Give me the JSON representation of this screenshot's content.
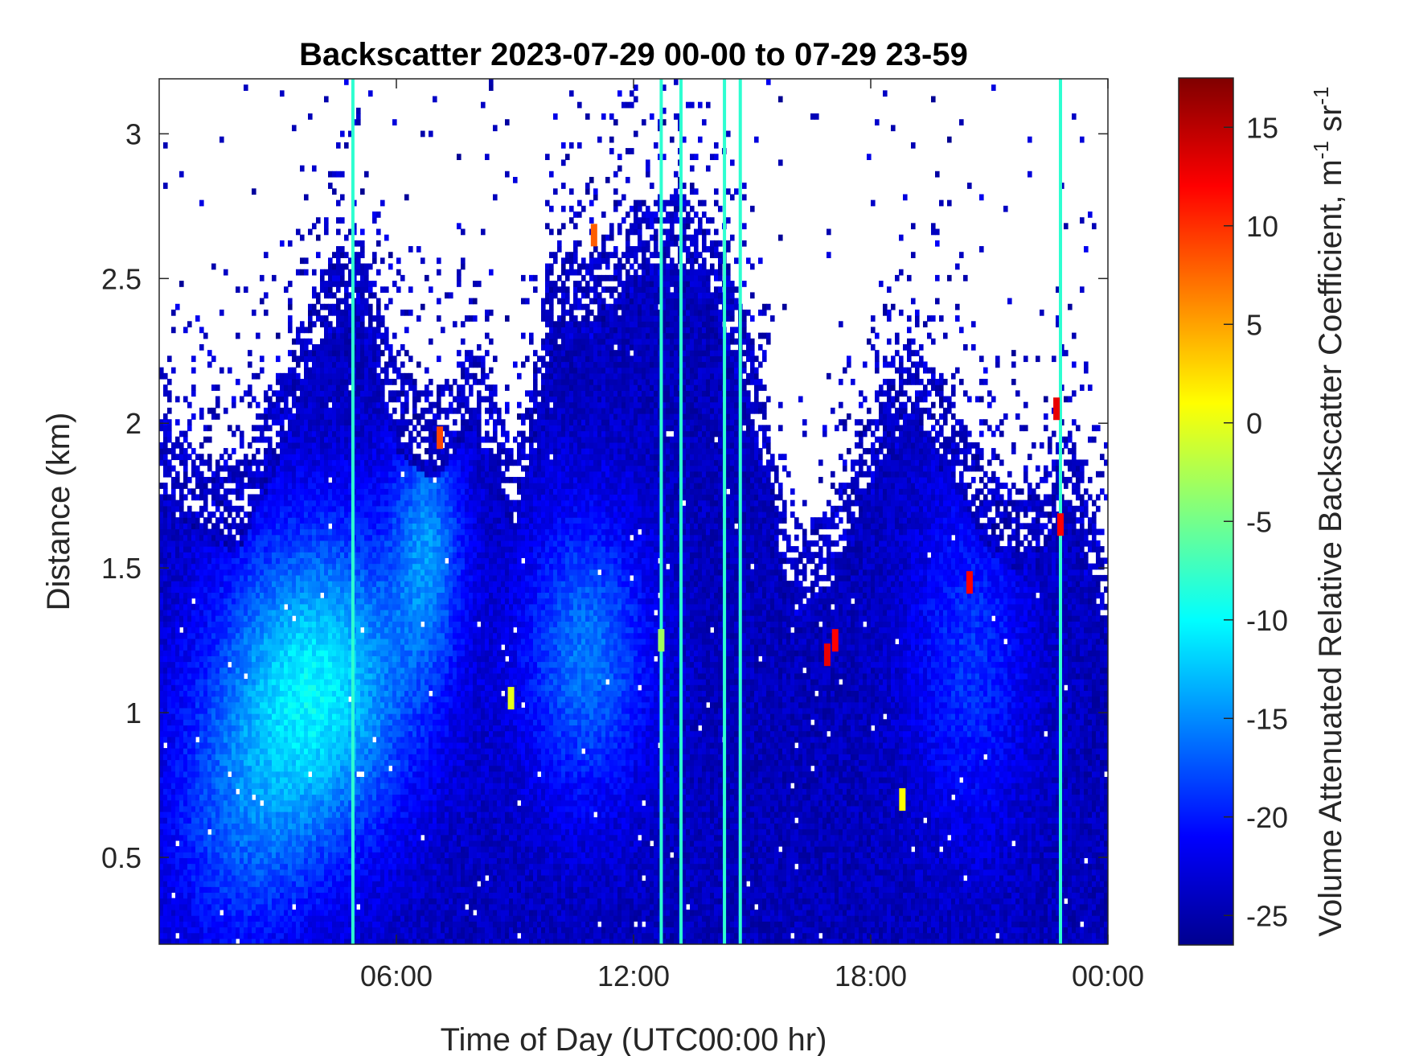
{
  "chart_data": {
    "type": "heatmap",
    "title": "Backscatter 2023-07-29 00-00 to 07-29 23-59",
    "xlabel": "Time of Day (UTC00:00 hr)",
    "ylabel": "Distance (km)",
    "x_range_hours": [
      0,
      24
    ],
    "y_range_km": [
      0.2,
      3.19
    ],
    "x_ticks": [
      {
        "hours": 6,
        "label": "06:00"
      },
      {
        "hours": 12,
        "label": "12:00"
      },
      {
        "hours": 18,
        "label": "18:00"
      },
      {
        "hours": 24,
        "label": "00:00"
      }
    ],
    "y_ticks": [
      {
        "value": 0.5,
        "label": "0.5"
      },
      {
        "value": 1,
        "label": "1"
      },
      {
        "value": 1.5,
        "label": "1.5"
      },
      {
        "value": 2,
        "label": "2"
      },
      {
        "value": 2.5,
        "label": "2.5"
      },
      {
        "value": 3,
        "label": "3"
      }
    ],
    "colorbar": {
      "label_main": "Volume Attenuated Relative Backscatter Coefficient, m",
      "label_sup1": "-1",
      "label_mid": " sr",
      "label_sup2": "-1",
      "range": [
        -26.5,
        17.5
      ],
      "colormap": "jet",
      "ticks": [
        {
          "value": -25,
          "label": "-25"
        },
        {
          "value": -20,
          "label": "-20"
        },
        {
          "value": -15,
          "label": "-15"
        },
        {
          "value": -10,
          "label": "-10"
        },
        {
          "value": -5,
          "label": "-5"
        },
        {
          "value": 0,
          "label": "0"
        },
        {
          "value": 5,
          "label": "5"
        },
        {
          "value": 10,
          "label": "10"
        },
        {
          "value": 15,
          "label": "15"
        }
      ]
    },
    "signal_top_km_by_hour": [
      {
        "hour": 0,
        "top": 2.05
      },
      {
        "hour": 1,
        "top": 1.9
      },
      {
        "hour": 2,
        "top": 1.85
      },
      {
        "hour": 3,
        "top": 2.15
      },
      {
        "hour": 4,
        "top": 2.5
      },
      {
        "hour": 5,
        "top": 2.7
      },
      {
        "hour": 6,
        "top": 2.2
      },
      {
        "hour": 7,
        "top": 2.1
      },
      {
        "hour": 8,
        "top": 2.3
      },
      {
        "hour": 9,
        "top": 1.9
      },
      {
        "hour": 10,
        "top": 2.6
      },
      {
        "hour": 11,
        "top": 2.6
      },
      {
        "hour": 12,
        "top": 2.75
      },
      {
        "hour": 13,
        "top": 2.8
      },
      {
        "hour": 14,
        "top": 2.7
      },
      {
        "hour": 15,
        "top": 2.3
      },
      {
        "hour": 16,
        "top": 1.6
      },
      {
        "hour": 17,
        "top": 1.7
      },
      {
        "hour": 18,
        "top": 2.05
      },
      {
        "hour": 19,
        "top": 2.3
      },
      {
        "hour": 20,
        "top": 2.1
      },
      {
        "hour": 21,
        "top": 1.85
      },
      {
        "hour": 22,
        "top": 1.75
      },
      {
        "hour": 23,
        "top": 2.0
      },
      {
        "hour": 24,
        "top": 1.5
      }
    ],
    "vertical_streaks_hours": [
      4.9,
      12.7,
      13.2,
      14.3,
      14.7,
      22.8
    ],
    "hotspots": [
      {
        "hour": 11.0,
        "km": 2.65,
        "value": 8
      },
      {
        "hour": 7.1,
        "km": 1.95,
        "value": 9
      },
      {
        "hour": 16.9,
        "km": 1.2,
        "value": 13
      },
      {
        "hour": 17.1,
        "km": 1.25,
        "value": 12
      },
      {
        "hour": 20.5,
        "km": 1.45,
        "value": 12
      },
      {
        "hour": 22.7,
        "km": 2.05,
        "value": 13
      },
      {
        "hour": 22.8,
        "km": 1.65,
        "value": 12
      },
      {
        "hour": 18.8,
        "km": 0.7,
        "value": 1
      },
      {
        "hour": 12.7,
        "km": 1.25,
        "value": -3
      },
      {
        "hour": 8.9,
        "km": 1.05,
        "value": 0
      }
    ]
  }
}
